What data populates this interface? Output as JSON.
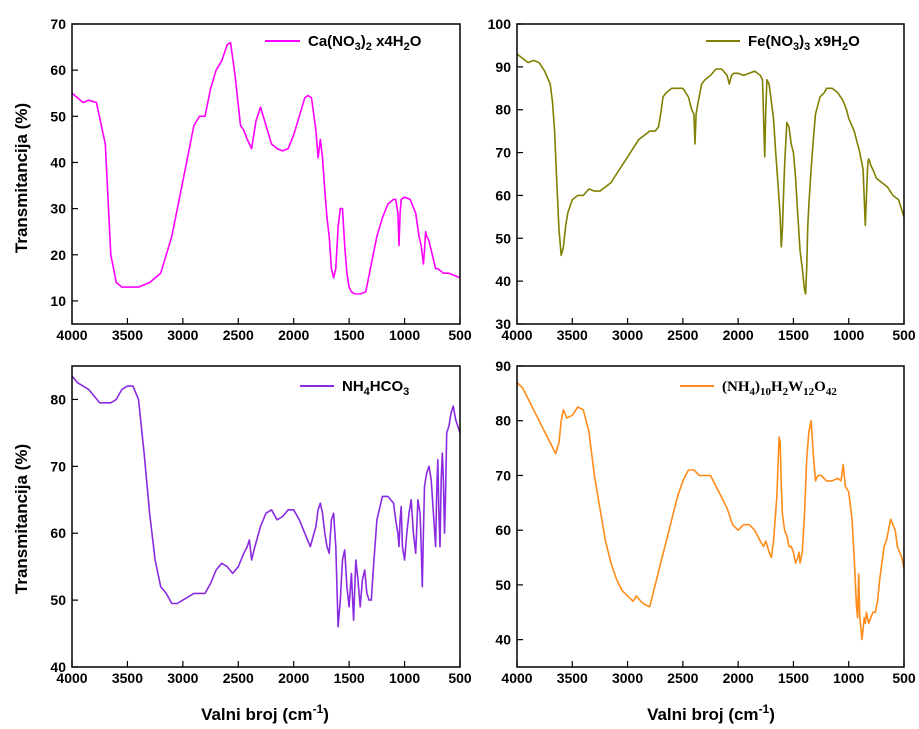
{
  "figure": {
    "ylabel": "Transmitancija (%)",
    "xlabel_main": "Valni broj (cm",
    "xlabel_sup": "-1",
    "xlabel_close": ")"
  },
  "chart_data": [
    {
      "type": "line",
      "panel": "top-left",
      "legend": {
        "parts": [
          [
            "Ca(NO",
            "n"
          ],
          [
            "3",
            "sub"
          ],
          [
            ")",
            "n"
          ],
          [
            "2",
            "sub"
          ],
          [
            " x4H",
            "n"
          ],
          [
            "2",
            "sub"
          ],
          [
            "O",
            "n"
          ]
        ]
      },
      "color": "#ff00ff",
      "xlim": [
        4000,
        500
      ],
      "ylim": [
        5,
        70
      ],
      "xticks": [
        4000,
        3500,
        3000,
        2500,
        2000,
        1500,
        1000,
        500
      ],
      "yticks": [
        10,
        20,
        30,
        40,
        50,
        60,
        70
      ],
      "xlabel": "",
      "ylabel": "Transmitancija (%)",
      "series": [
        {
          "x": [
            4000,
            3950,
            3900,
            3850,
            3780,
            3700,
            3650,
            3600,
            3550,
            3500,
            3450,
            3400,
            3300,
            3200,
            3100,
            3000,
            2900,
            2850,
            2800,
            2750,
            2700,
            2650,
            2600,
            2570,
            2530,
            2480,
            2450,
            2420,
            2380,
            2340,
            2300,
            2250,
            2200,
            2150,
            2100,
            2050,
            2000,
            1950,
            1900,
            1870,
            1840,
            1800,
            1780,
            1760,
            1740,
            1720,
            1700,
            1680,
            1660,
            1640,
            1620,
            1600,
            1580,
            1560,
            1540,
            1520,
            1500,
            1480,
            1450,
            1400,
            1350,
            1300,
            1250,
            1200,
            1150,
            1100,
            1080,
            1060,
            1050,
            1040,
            1030,
            1000,
            950,
            900,
            870,
            850,
            830,
            820,
            810,
            800,
            780,
            760,
            740,
            720,
            700,
            650,
            600,
            550,
            500
          ],
          "y": [
            55,
            54,
            53,
            53.5,
            53,
            44,
            20,
            14,
            13,
            13,
            13,
            13,
            14,
            16,
            24,
            36,
            48,
            50,
            50,
            56,
            60,
            62,
            65.5,
            66,
            59,
            48,
            47,
            45,
            43,
            49,
            52,
            48,
            44,
            43,
            42.5,
            43,
            46,
            50,
            54,
            54.5,
            54,
            47,
            41,
            45,
            41,
            34,
            28,
            24,
            17,
            15,
            17,
            26,
            30,
            30,
            22,
            16,
            13,
            12,
            11.5,
            11.5,
            12,
            18,
            24,
            28,
            31,
            32,
            32,
            29,
            22,
            29,
            32,
            32.5,
            32,
            29,
            24,
            22,
            18,
            21,
            25,
            24,
            23,
            21,
            19,
            17,
            17,
            16,
            16,
            15.5,
            15
          ]
        }
      ]
    },
    {
      "type": "line",
      "panel": "top-right",
      "legend": {
        "parts": [
          [
            "Fe(NO",
            "n"
          ],
          [
            "3",
            "sub"
          ],
          [
            ")",
            "n"
          ],
          [
            "3",
            "sub"
          ],
          [
            " x9H",
            "n"
          ],
          [
            "2",
            "sub"
          ],
          [
            "O",
            "n"
          ]
        ]
      },
      "color": "#808000",
      "xlim": [
        4000,
        500
      ],
      "ylim": [
        30,
        100
      ],
      "xticks": [
        4000,
        3500,
        3000,
        2500,
        2000,
        1500,
        1000,
        500
      ],
      "yticks": [
        30,
        40,
        50,
        60,
        70,
        80,
        90,
        100
      ],
      "xlabel": "",
      "ylabel": "",
      "series": [
        {
          "x": [
            4000,
            3950,
            3900,
            3850,
            3800,
            3750,
            3700,
            3680,
            3660,
            3640,
            3620,
            3600,
            3580,
            3560,
            3540,
            3500,
            3450,
            3400,
            3350,
            3300,
            3250,
            3200,
            3150,
            3100,
            3000,
            2900,
            2800,
            2750,
            2720,
            2700,
            2680,
            2650,
            2600,
            2550,
            2500,
            2450,
            2420,
            2400,
            2390,
            2380,
            2360,
            2330,
            2300,
            2250,
            2200,
            2150,
            2100,
            2080,
            2060,
            2040,
            2000,
            1950,
            1900,
            1850,
            1800,
            1780,
            1760,
            1750,
            1740,
            1720,
            1700,
            1680,
            1660,
            1640,
            1620,
            1610,
            1600,
            1590,
            1580,
            1560,
            1540,
            1520,
            1500,
            1480,
            1460,
            1440,
            1420,
            1400,
            1390,
            1380,
            1370,
            1360,
            1340,
            1320,
            1300,
            1260,
            1220,
            1200,
            1150,
            1100,
            1050,
            1020,
            1000,
            950,
            900,
            870,
            850,
            830,
            825,
            820,
            810,
            800,
            780,
            750,
            700,
            650,
            600,
            550,
            500
          ],
          "y": [
            93,
            92,
            91,
            91.5,
            91,
            89,
            86,
            82,
            75,
            63,
            52,
            46,
            48,
            53,
            56,
            59,
            60,
            60,
            61.5,
            61,
            61,
            62,
            63,
            65,
            69,
            73,
            75,
            75,
            76,
            79,
            83,
            84,
            85,
            85,
            85,
            83,
            80,
            79,
            72,
            79,
            82,
            86,
            87,
            88,
            89.5,
            89.5,
            88,
            86,
            88,
            88.5,
            88.5,
            88,
            88.5,
            89,
            88,
            87,
            69,
            80,
            87,
            86,
            82,
            78,
            70,
            63,
            55,
            48,
            52,
            60,
            67,
            77,
            76,
            72,
            70,
            64,
            55,
            47,
            43,
            38,
            37,
            43,
            53,
            58,
            66,
            73,
            79,
            83,
            84,
            85,
            85,
            84,
            82,
            80,
            78,
            75,
            70,
            66,
            53,
            66,
            68,
            68.5,
            68,
            67,
            66,
            64,
            63,
            62,
            60,
            59,
            55
          ]
        }
      ]
    },
    {
      "type": "line",
      "panel": "bottom-left",
      "legend": {
        "parts": [
          [
            "NH",
            "n"
          ],
          [
            "4",
            "sub"
          ],
          [
            "HCO",
            "n"
          ],
          [
            "3",
            "sub"
          ]
        ]
      },
      "color": "#8a2be2",
      "xlim": [
        4000,
        500
      ],
      "ylim": [
        40,
        85
      ],
      "xticks": [
        4000,
        3500,
        3000,
        2500,
        2000,
        1500,
        1000,
        500
      ],
      "yticks": [
        40,
        50,
        60,
        70,
        80
      ],
      "xlabel": "Valni broj (cm⁻¹)",
      "ylabel": "Transmitancija (%)",
      "series": [
        {
          "x": [
            4000,
            3950,
            3900,
            3850,
            3800,
            3750,
            3700,
            3650,
            3600,
            3550,
            3500,
            3450,
            3400,
            3350,
            3300,
            3250,
            3200,
            3150,
            3100,
            3050,
            3000,
            2950,
            2900,
            2850,
            2800,
            2750,
            2700,
            2650,
            2600,
            2550,
            2500,
            2450,
            2420,
            2400,
            2380,
            2350,
            2300,
            2250,
            2200,
            2150,
            2100,
            2050,
            2000,
            1950,
            1900,
            1850,
            1800,
            1780,
            1760,
            1740,
            1720,
            1700,
            1680,
            1660,
            1640,
            1620,
            1600,
            1580,
            1560,
            1540,
            1520,
            1500,
            1480,
            1460,
            1440,
            1420,
            1400,
            1380,
            1360,
            1340,
            1320,
            1300,
            1280,
            1250,
            1200,
            1150,
            1100,
            1080,
            1060,
            1050,
            1040,
            1030,
            1020,
            1000,
            980,
            960,
            940,
            920,
            900,
            880,
            860,
            850,
            840,
            830,
            820,
            800,
            780,
            760,
            740,
            720,
            710,
            700,
            690,
            680,
            670,
            660,
            650,
            640,
            630,
            620,
            600,
            580,
            560,
            540,
            520,
            500
          ],
          "y": [
            83.5,
            82.5,
            82,
            81.5,
            80.5,
            79.5,
            79.5,
            79.5,
            80,
            81.5,
            82,
            82,
            80,
            72,
            63,
            56,
            52,
            51,
            49.5,
            49.5,
            50,
            50.5,
            51,
            51,
            51,
            52.5,
            54.5,
            55.5,
            55,
            54,
            55,
            57,
            58,
            59,
            56,
            58,
            61,
            63,
            63.5,
            62,
            62.5,
            63.5,
            63.5,
            62,
            60,
            58,
            61,
            63.5,
            64.5,
            63,
            60,
            58,
            57,
            62,
            63,
            58,
            46,
            50,
            56,
            57.5,
            52,
            49,
            54,
            47,
            56,
            53,
            49,
            53,
            54.5,
            51,
            50,
            50,
            55,
            62,
            65.5,
            65.5,
            64.5,
            62,
            60,
            58,
            62,
            64,
            58,
            56,
            60,
            63,
            65,
            60,
            57,
            65,
            63,
            58,
            52,
            60,
            67,
            69,
            70,
            68,
            63,
            58,
            66,
            71,
            63,
            58,
            68,
            72,
            68,
            60,
            66,
            75,
            76,
            78,
            79,
            77,
            76,
            75
          ]
        }
      ]
    },
    {
      "type": "line",
      "panel": "bottom-right",
      "legend": {
        "serif": true,
        "parts": [
          [
            "(NH",
            "n"
          ],
          [
            "4",
            "sub"
          ],
          [
            ")",
            "n"
          ],
          [
            "10",
            "sub"
          ],
          [
            "H",
            "n"
          ],
          [
            "2",
            "sub"
          ],
          [
            "W",
            "n"
          ],
          [
            "12",
            "sub"
          ],
          [
            "O",
            "n"
          ],
          [
            "42",
            "sub"
          ]
        ]
      },
      "color": "#ff8c1a",
      "xlim": [
        4000,
        500
      ],
      "ylim": [
        35,
        90
      ],
      "xticks": [
        4000,
        3500,
        3000,
        2500,
        2000,
        1500,
        1000,
        500
      ],
      "yticks": [
        40,
        50,
        60,
        70,
        80,
        90
      ],
      "xlabel": "Valni broj (cm⁻¹)",
      "ylabel": "",
      "series": [
        {
          "x": [
            4000,
            3950,
            3900,
            3850,
            3800,
            3750,
            3700,
            3650,
            3620,
            3600,
            3580,
            3550,
            3500,
            3450,
            3400,
            3350,
            3300,
            3250,
            3200,
            3150,
            3100,
            3050,
            3000,
            2950,
            2920,
            2900,
            2880,
            2850,
            2800,
            2750,
            2700,
            2650,
            2600,
            2550,
            2500,
            2450,
            2400,
            2350,
            2300,
            2250,
            2200,
            2150,
            2100,
            2050,
            2000,
            1950,
            1900,
            1850,
            1800,
            1770,
            1750,
            1720,
            1700,
            1680,
            1650,
            1630,
            1620,
            1610,
            1600,
            1580,
            1560,
            1540,
            1520,
            1500,
            1480,
            1460,
            1450,
            1440,
            1420,
            1400,
            1380,
            1360,
            1340,
            1320,
            1300,
            1280,
            1250,
            1200,
            1150,
            1100,
            1070,
            1050,
            1030,
            1000,
            970,
            950,
            930,
            920,
            910,
            900,
            890,
            880,
            870,
            860,
            850,
            840,
            820,
            800,
            780,
            760,
            740,
            720,
            700,
            680,
            660,
            640,
            620,
            600,
            580,
            560,
            540,
            520,
            500
          ],
          "y": [
            87,
            86,
            84,
            82,
            80,
            78,
            76,
            74,
            76,
            80,
            82,
            80.5,
            81,
            82.5,
            82,
            78,
            70,
            64,
            58,
            54,
            51,
            49,
            48,
            47,
            48,
            47.5,
            47,
            46.5,
            46,
            50,
            54,
            58,
            62,
            66,
            69,
            71,
            71,
            70,
            70,
            70,
            68,
            66,
            64,
            61,
            60,
            61,
            61,
            60,
            58,
            57,
            58,
            56,
            55,
            58,
            66,
            77,
            76,
            68,
            63,
            60,
            59,
            57,
            57,
            56,
            54,
            55,
            56,
            54,
            56,
            63,
            73,
            78,
            80,
            74,
            69,
            70,
            70,
            69,
            69,
            69.5,
            69,
            72,
            68,
            67,
            62,
            55,
            46,
            44,
            52,
            44,
            42,
            40,
            42,
            44,
            43,
            45,
            43,
            44,
            45,
            45,
            47,
            51,
            54,
            57,
            58,
            60,
            62,
            61,
            60,
            57,
            56,
            55,
            53
          ]
        }
      ]
    }
  ]
}
